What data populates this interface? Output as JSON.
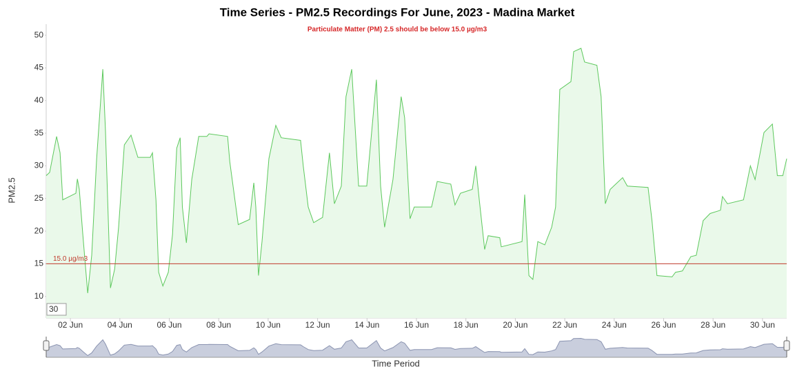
{
  "chart_data": {
    "type": "area",
    "title": "Time Series - PM2.5 Recordings For June, 2023 - Madina Market",
    "subtitle": "Particulate Matter (PM) 2.5 should be below 15.0 µg/m3",
    "x_label": "Time Period",
    "y_label": "PM2.5",
    "range_input": "30",
    "threshold": {
      "value": 15,
      "label": "15.0 µg/m3",
      "color": "#c0392b"
    },
    "xlim": [
      1.02,
      30.98
    ],
    "ylim": [
      6.7,
      51.7
    ],
    "xticks": [
      {
        "value": 2,
        "label": "02 Jun"
      },
      {
        "value": 4,
        "label": "04 Jun"
      },
      {
        "value": 6,
        "label": "06 Jun"
      },
      {
        "value": 8,
        "label": "08 Jun"
      },
      {
        "value": 10,
        "label": "10 Jun"
      },
      {
        "value": 12,
        "label": "12 Jun"
      },
      {
        "value": 14,
        "label": "14 Jun"
      },
      {
        "value": 16,
        "label": "16 Jun"
      },
      {
        "value": 18,
        "label": "18 Jun"
      },
      {
        "value": 20,
        "label": "20 Jun"
      },
      {
        "value": 22,
        "label": "22 Jun"
      },
      {
        "value": 24,
        "label": "24 Jun"
      },
      {
        "value": 26,
        "label": "26 Jun"
      },
      {
        "value": 28,
        "label": "28 Jun"
      },
      {
        "value": 30,
        "label": "30 Jun"
      }
    ],
    "yticks": [
      10,
      15,
      20,
      25,
      30,
      35,
      40,
      45,
      50
    ],
    "grid": false,
    "series": [
      {
        "name": "PM2.5",
        "color": "#5cc85c",
        "fill": "#eaf9ea",
        "x": [
          1.02,
          1.16,
          1.44,
          1.58,
          1.69,
          2.22,
          2.28,
          2.36,
          2.5,
          2.7,
          2.86,
          3.06,
          3.31,
          3.42,
          3.62,
          3.79,
          3.95,
          4.18,
          4.45,
          4.73,
          5.23,
          5.32,
          5.46,
          5.57,
          5.74,
          5.96,
          6.13,
          6.3,
          6.44,
          6.53,
          6.69,
          6.91,
          7.19,
          7.52,
          7.61,
          8.36,
          8.45,
          8.79,
          9.25,
          9.42,
          9.5,
          9.61,
          9.75,
          10.03,
          10.31,
          10.53,
          11.31,
          11.42,
          11.62,
          11.84,
          12.2,
          12.48,
          12.68,
          12.96,
          13.15,
          13.38,
          13.66,
          13.99,
          14.38,
          14.55,
          14.71,
          15.05,
          15.38,
          15.52,
          15.74,
          15.91,
          16.61,
          16.84,
          17.39,
          17.56,
          17.78,
          18.26,
          18.4,
          18.54,
          18.76,
          18.9,
          19.37,
          19.43,
          20.27,
          20.38,
          20.55,
          20.71,
          20.91,
          21.19,
          21.47,
          21.63,
          21.8,
          22.25,
          22.36,
          22.66,
          22.8,
          23.3,
          23.47,
          23.64,
          23.84,
          24.34,
          24.53,
          25.37,
          25.53,
          25.73,
          26.34,
          26.48,
          26.76,
          27.1,
          27.32,
          27.6,
          27.88,
          28.3,
          28.38,
          28.58,
          29.23,
          29.51,
          29.7,
          30.06,
          30.4,
          30.6,
          30.82,
          30.98
        ],
        "values": [
          28.5,
          29,
          34.5,
          32,
          24.8,
          25.8,
          28,
          26.4,
          19.5,
          10.5,
          16.3,
          31,
          44.8,
          35.3,
          11.3,
          14.2,
          20.6,
          33.2,
          34.7,
          31.3,
          31.3,
          32,
          24.8,
          13.7,
          11.6,
          13.7,
          19.5,
          32.7,
          34.3,
          23.7,
          18.2,
          27.9,
          34.5,
          34.5,
          34.9,
          34.5,
          30.6,
          21,
          21.8,
          27.4,
          23.7,
          13.2,
          18.4,
          31.1,
          36.2,
          34.3,
          33.9,
          30,
          23.7,
          21.3,
          22.1,
          32,
          24.2,
          26.9,
          40.6,
          44.8,
          26.9,
          26.9,
          43.2,
          26.9,
          20.6,
          27.9,
          40.6,
          37.4,
          21.9,
          23.7,
          23.7,
          27.6,
          27.2,
          24,
          25.8,
          26.4,
          30,
          24.8,
          17.2,
          19.3,
          19,
          17.6,
          18.4,
          25.6,
          13.2,
          12.6,
          18.4,
          17.9,
          20.6,
          23.7,
          41.7,
          42.9,
          47.5,
          48,
          45.9,
          45.4,
          40.6,
          24.2,
          26.4,
          28.2,
          26.9,
          26.7,
          21.6,
          13.2,
          13,
          13.7,
          13.9,
          16.1,
          16.3,
          21.6,
          22.7,
          23.2,
          25.3,
          24.2,
          24.8,
          30,
          27.9,
          35.1,
          36.4,
          28.5,
          28.5,
          31.1
        ]
      }
    ]
  }
}
